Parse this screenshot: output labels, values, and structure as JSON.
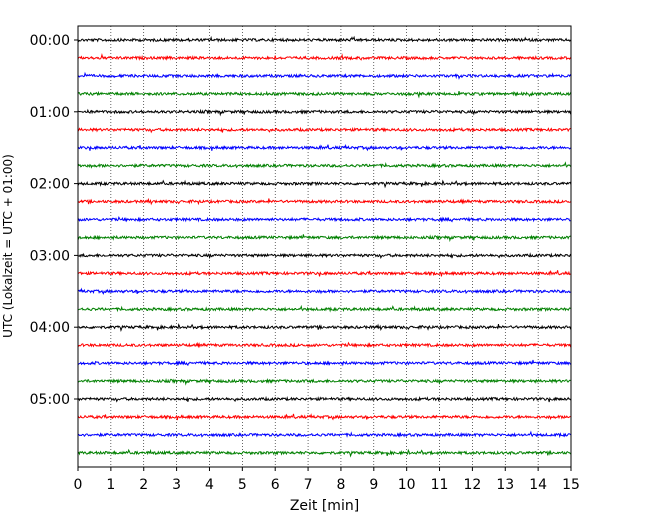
{
  "chart_data": {
    "type": "line",
    "title": "",
    "xlabel": "Zeit  [min]",
    "ylabel": "UTC (Lokalzeit = UTC + 01:00)",
    "xlim": [
      0,
      15
    ],
    "x_ticks": [
      "0",
      "1",
      "2",
      "3",
      "4",
      "5",
      "6",
      "7",
      "8",
      "9",
      "10",
      "11",
      "12",
      "13",
      "14",
      "15"
    ],
    "y_ticks": [
      "00:00",
      "01:00",
      "02:00",
      "03:00",
      "04:00",
      "05:00"
    ],
    "grid": "vertical dotted",
    "trace_colors": [
      "#000000",
      "#ff0000",
      "#0000ff",
      "#008000"
    ],
    "traces": [
      {
        "start": "00:00",
        "color": "#000000"
      },
      {
        "start": "00:15",
        "color": "#ff0000"
      },
      {
        "start": "00:30",
        "color": "#0000ff"
      },
      {
        "start": "00:45",
        "color": "#008000"
      },
      {
        "start": "01:00",
        "color": "#000000"
      },
      {
        "start": "01:15",
        "color": "#ff0000"
      },
      {
        "start": "01:30",
        "color": "#0000ff"
      },
      {
        "start": "01:45",
        "color": "#008000"
      },
      {
        "start": "02:00",
        "color": "#000000"
      },
      {
        "start": "02:15",
        "color": "#ff0000"
      },
      {
        "start": "02:30",
        "color": "#0000ff"
      },
      {
        "start": "02:45",
        "color": "#008000"
      },
      {
        "start": "03:00",
        "color": "#000000"
      },
      {
        "start": "03:15",
        "color": "#ff0000"
      },
      {
        "start": "03:30",
        "color": "#0000ff"
      },
      {
        "start": "03:45",
        "color": "#008000"
      },
      {
        "start": "04:00",
        "color": "#000000"
      },
      {
        "start": "04:15",
        "color": "#ff0000"
      },
      {
        "start": "04:30",
        "color": "#0000ff"
      },
      {
        "start": "04:45",
        "color": "#008000"
      },
      {
        "start": "05:00",
        "color": "#000000"
      },
      {
        "start": "05:15",
        "color": "#ff0000"
      },
      {
        "start": "05:30",
        "color": "#0000ff"
      },
      {
        "start": "05:45",
        "color": "#008000"
      }
    ]
  }
}
